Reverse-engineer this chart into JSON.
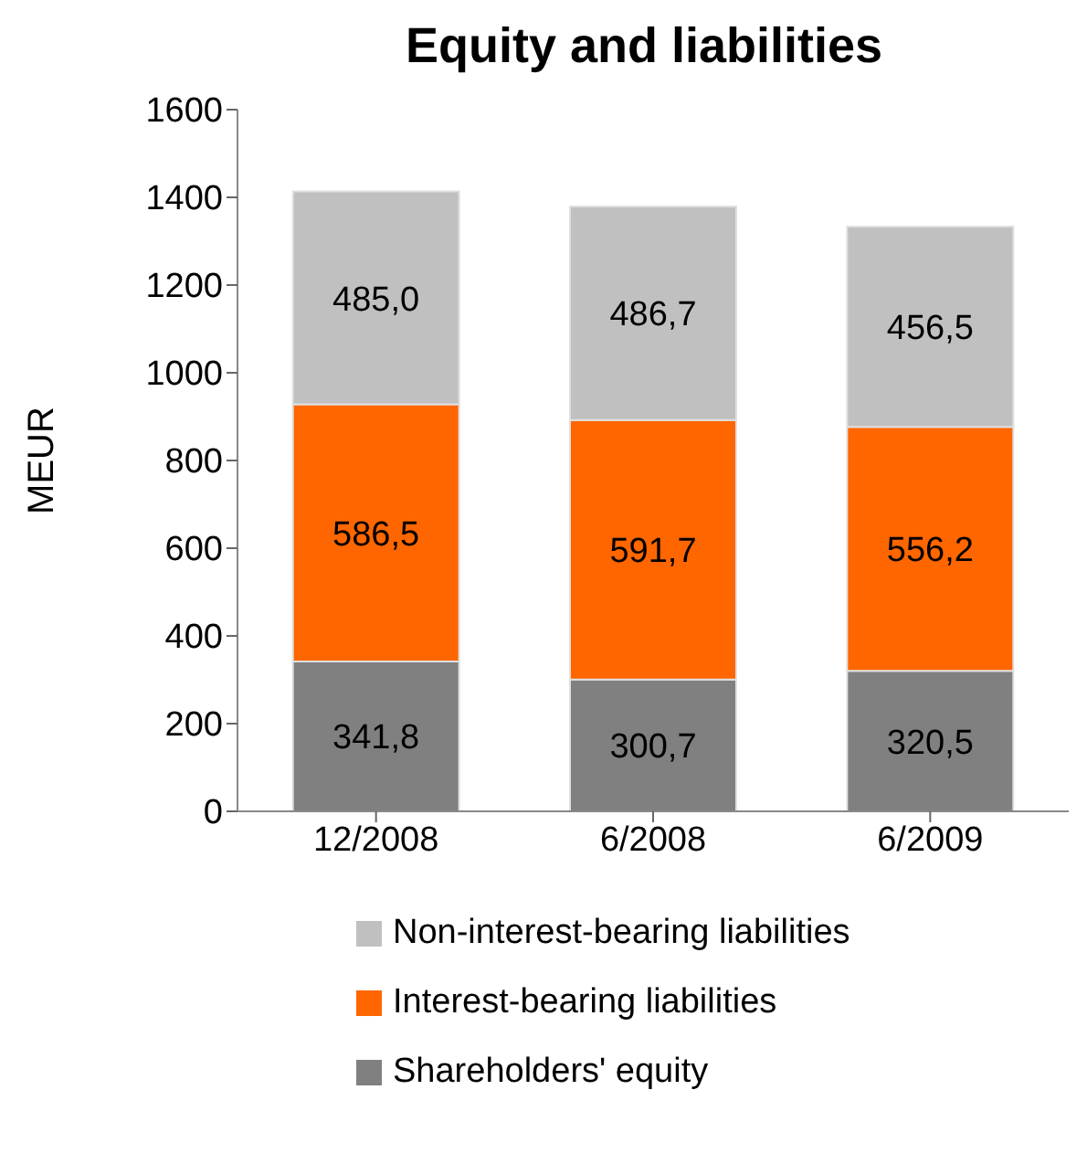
{
  "chart_data": {
    "type": "bar",
    "stacked": true,
    "title": "Equity and liabilities",
    "ylabel": "MEUR",
    "categories": [
      "12/2008",
      "6/2008",
      "6/2009"
    ],
    "series": [
      {
        "name": "Shareholders' equity",
        "color": "#808080",
        "values": [
          341.8,
          300.7,
          320.5
        ],
        "value_labels": [
          "341,8",
          "300,7",
          "320,5"
        ]
      },
      {
        "name": "Interest-bearing liabilities",
        "color": "#ff6600",
        "values": [
          586.5,
          591.7,
          556.2
        ],
        "value_labels": [
          "586,5",
          "591,7",
          "556,2"
        ]
      },
      {
        "name": "Non-interest-bearing liabilities",
        "color": "#c0c0c0",
        "values": [
          485.0,
          486.7,
          456.5
        ],
        "value_labels": [
          "485,0",
          "486,7",
          "456,5"
        ]
      }
    ],
    "ylim": [
      0,
      1600
    ],
    "yticks": [
      0,
      200,
      400,
      600,
      800,
      1000,
      1200,
      1400,
      1600
    ],
    "grid": false,
    "legend": "bottom"
  }
}
